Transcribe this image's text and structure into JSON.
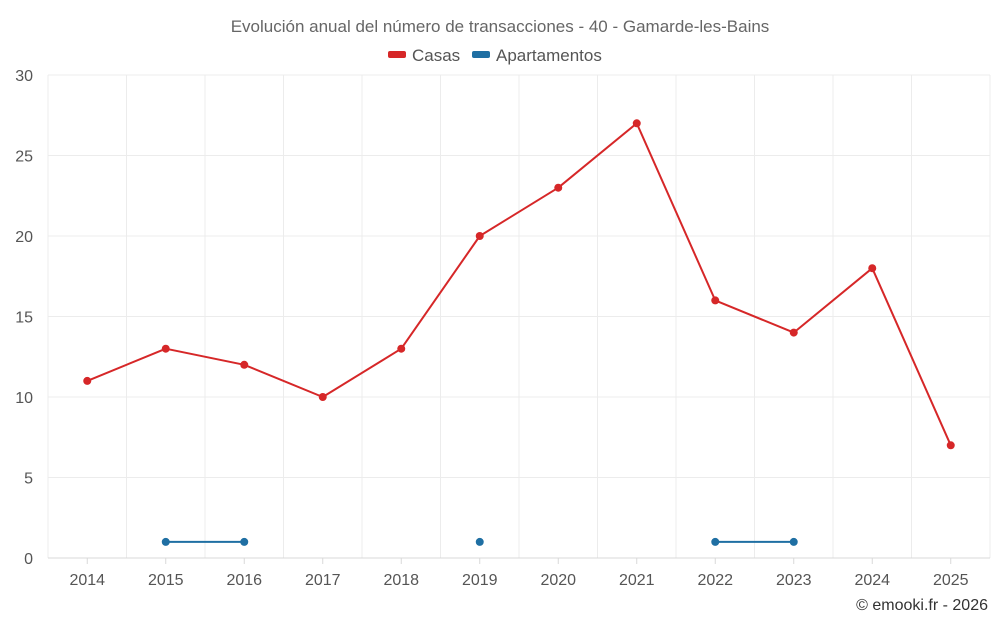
{
  "chart_data": {
    "type": "line",
    "title": "Evolución anual del número de transacciones - 40 - Gamarde-les-Bains",
    "categories": [
      "2014",
      "2015",
      "2016",
      "2017",
      "2018",
      "2019",
      "2020",
      "2021",
      "2022",
      "2023",
      "2024",
      "2025"
    ],
    "ylim": [
      0,
      30
    ],
    "yticks": [
      0,
      5,
      10,
      15,
      20,
      25,
      30
    ],
    "grid": true,
    "legend_position": "top-center",
    "series": [
      {
        "name": "Casas",
        "color": "#d62728",
        "values": [
          11,
          13,
          12,
          10,
          13,
          20,
          23,
          27,
          16,
          14,
          18,
          7
        ]
      },
      {
        "name": "Apartamentos",
        "color": "#1f6fa3",
        "values": [
          null,
          1,
          1,
          null,
          null,
          1,
          null,
          null,
          1,
          1,
          null,
          null
        ]
      }
    ],
    "credit": "© emooki.fr - 2026"
  }
}
